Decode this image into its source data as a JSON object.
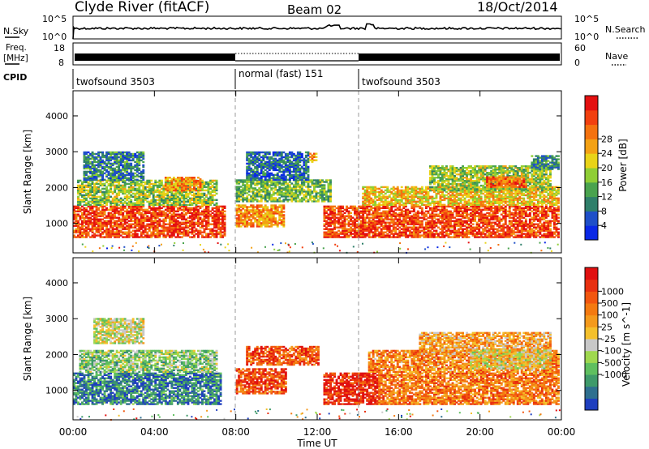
{
  "header": {
    "station": "Clyde River (fitACF)",
    "beam": "Beam 02",
    "date": "18/Oct/2014"
  },
  "chart_data": [
    {
      "type": "line",
      "panel": "noise",
      "left_label": "N.Sky",
      "right_label": "N.Search",
      "left_ticks": [
        "10^5",
        "10^0"
      ],
      "right_ticks": [
        "10^5",
        "10^0"
      ],
      "yscale": "log"
    },
    {
      "type": "line",
      "panel": "frequency",
      "left_label_line1": "Freq.",
      "left_label_line2": "[MHz]",
      "right_label": "Nave",
      "left_ticks": [
        18,
        8
      ],
      "right_ticks": [
        60,
        0
      ],
      "ylim_left": [
        8,
        18
      ],
      "ylim_right": [
        0,
        60
      ]
    },
    {
      "type": "table",
      "panel": "cpid",
      "label": "CPID",
      "segments": [
        {
          "name": "twofsound 3503",
          "start": 0,
          "end": 8
        },
        {
          "name": "normal (fast) 151",
          "start": 8,
          "end": 14
        },
        {
          "name": "twofsound 3503",
          "start": 14,
          "end": 24
        }
      ]
    },
    {
      "type": "heatmap",
      "panel": "power",
      "ylabel": "Slant Range [km]",
      "ylim": [
        180,
        4700
      ],
      "yticks": [
        1000,
        2000,
        3000,
        4000
      ],
      "xlim": [
        0,
        24
      ],
      "colorbar_label": "Power [dB]",
      "colorbar_ticks": [
        4,
        8,
        12,
        16,
        20,
        24,
        28
      ],
      "colorbar_colors": [
        "#0a28e6",
        "#1f4fc8",
        "#2f7f6a",
        "#4aa34e",
        "#8fce35",
        "#e9d318",
        "#f3a114",
        "#f4720f",
        "#f2400f",
        "#e41010"
      ],
      "echo_regions": [
        {
          "t0": 0.0,
          "t1": 7.4,
          "r0": 600,
          "r1": 1500,
          "level": 0.85
        },
        {
          "t0": 0.2,
          "t1": 7.0,
          "r0": 1500,
          "r1": 2200,
          "level": 0.45
        },
        {
          "t0": 0.5,
          "t1": 3.5,
          "r0": 2200,
          "r1": 3000,
          "level": 0.25
        },
        {
          "t0": 4.5,
          "t1": 6.2,
          "r0": 1900,
          "r1": 2300,
          "level": 0.7
        },
        {
          "t0": 8.0,
          "t1": 10.3,
          "r0": 900,
          "r1": 1500,
          "level": 0.7
        },
        {
          "t0": 8.0,
          "t1": 12.6,
          "r0": 1600,
          "r1": 2200,
          "level": 0.4
        },
        {
          "t0": 8.5,
          "t1": 11.5,
          "r0": 2200,
          "r1": 3000,
          "level": 0.2
        },
        {
          "t0": 11.6,
          "t1": 11.9,
          "r0": 2700,
          "r1": 2950,
          "level": 0.7
        },
        {
          "t0": 12.3,
          "t1": 23.9,
          "r0": 600,
          "r1": 1500,
          "level": 0.85
        },
        {
          "t0": 14.2,
          "t1": 23.9,
          "r0": 1500,
          "r1": 2000,
          "level": 0.6
        },
        {
          "t0": 17.5,
          "t1": 23.5,
          "r0": 1900,
          "r1": 2600,
          "level": 0.45
        },
        {
          "t0": 20.3,
          "t1": 22.3,
          "r0": 2000,
          "r1": 2300,
          "level": 0.8
        },
        {
          "t0": 22.5,
          "t1": 23.9,
          "r0": 2500,
          "r1": 2900,
          "level": 0.3
        }
      ]
    },
    {
      "type": "heatmap",
      "panel": "velocity",
      "ylabel": "Slant Range [km]",
      "ylim": [
        180,
        4700
      ],
      "yticks": [
        1000,
        2000,
        3000,
        4000
      ],
      "xlim": [
        0,
        24
      ],
      "xticks": [
        "00:00",
        "04:00",
        "08:00",
        "12:00",
        "16:00",
        "20:00",
        "00:00"
      ],
      "xlabel": "Time UT",
      "colorbar_label": "Velocity [m s^-1]",
      "colorbar_ticks": [
        1000,
        500,
        100,
        25,
        -25,
        -100,
        -500,
        -1000
      ],
      "colorbar_colors": [
        "#1f3fbf",
        "#2f6f8f",
        "#3f9a6a",
        "#5fbf5f",
        "#9fd84f",
        "#c8c8c8",
        "#f4c02c",
        "#f49a1c",
        "#f47a10",
        "#f2560f",
        "#e83010",
        "#e01010"
      ],
      "echo_regions": [
        {
          "t0": 0.0,
          "t1": 7.2,
          "r0": 600,
          "r1": 1500,
          "level": 0.15
        },
        {
          "t0": 0.3,
          "t1": 7.0,
          "r0": 1500,
          "r1": 2100,
          "level": 0.35
        },
        {
          "t0": 1.0,
          "t1": 3.5,
          "r0": 2300,
          "r1": 3000,
          "level": 0.45
        },
        {
          "t0": 8.0,
          "t1": 10.4,
          "r0": 900,
          "r1": 1600,
          "level": 0.82
        },
        {
          "t0": 8.5,
          "t1": 12.0,
          "r0": 1700,
          "r1": 2200,
          "level": 0.8
        },
        {
          "t0": 12.3,
          "t1": 15.0,
          "r0": 600,
          "r1": 1500,
          "level": 0.92
        },
        {
          "t0": 15.0,
          "t1": 23.9,
          "r0": 600,
          "r1": 1500,
          "level": 0.72
        },
        {
          "t0": 14.5,
          "t1": 23.9,
          "r0": 1500,
          "r1": 2100,
          "level": 0.68
        },
        {
          "t0": 17.0,
          "t1": 23.5,
          "r0": 2000,
          "r1": 2600,
          "level": 0.62
        },
        {
          "t0": 19.5,
          "t1": 23.5,
          "r0": 1600,
          "r1": 2100,
          "level": 0.5
        }
      ]
    }
  ]
}
